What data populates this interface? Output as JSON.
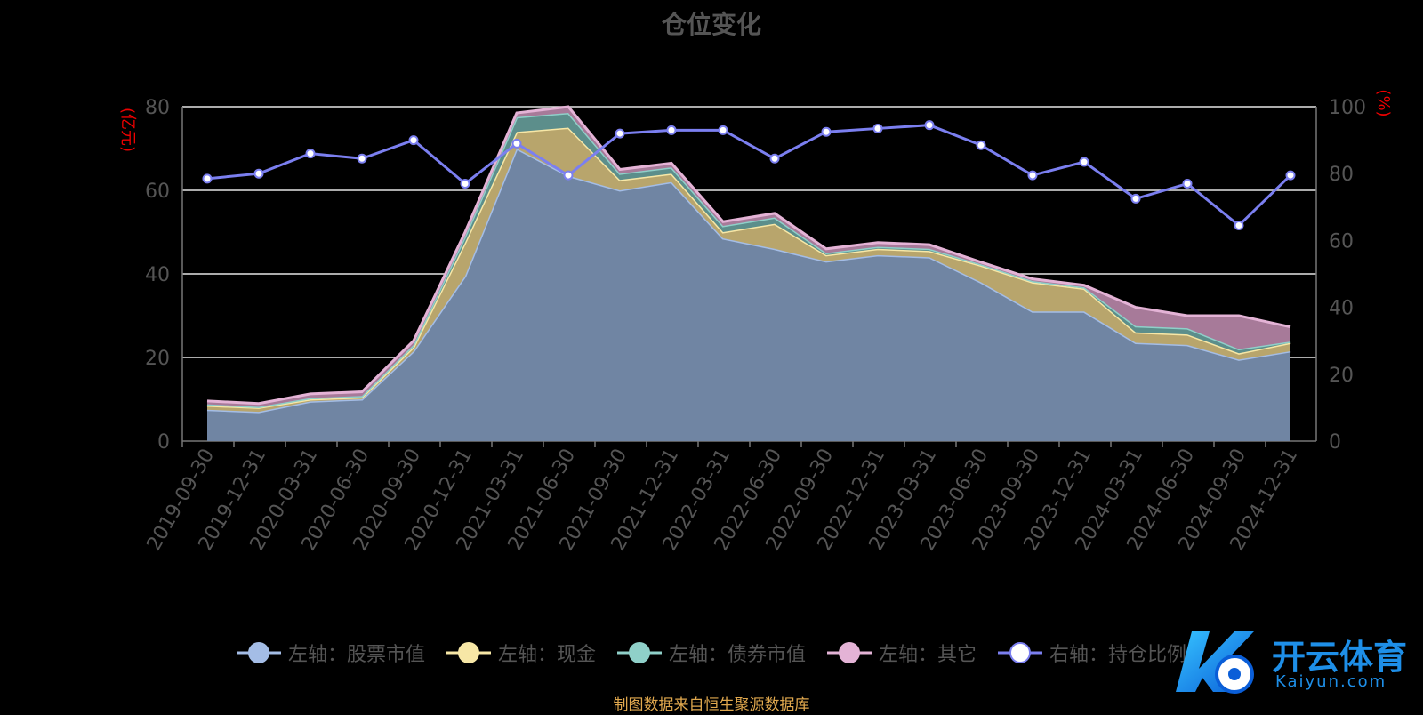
{
  "chart_data": {
    "type": "area",
    "title": "仓位变化",
    "categories": [
      "2019-09-30",
      "2019-12-31",
      "2020-03-31",
      "2020-06-30",
      "2020-09-30",
      "2020-12-31",
      "2021-03-31",
      "2021-06-30",
      "2021-09-30",
      "2021-12-31",
      "2022-03-31",
      "2022-06-30",
      "2022-09-30",
      "2022-12-31",
      "2023-03-31",
      "2023-06-30",
      "2023-09-30",
      "2023-12-31",
      "2024-03-31",
      "2024-06-30",
      "2024-09-30",
      "2024-12-31"
    ],
    "ylabel_left": "(亿元)",
    "ylabel_right": "(%)",
    "ylim_left": [
      0,
      80
    ],
    "ylim_right": [
      0,
      100
    ],
    "yticks_left": [
      0,
      20,
      40,
      60,
      80
    ],
    "yticks_right": [
      0,
      20,
      40,
      60,
      80,
      100
    ],
    "grid": true,
    "legend_position": "bottom",
    "stacked": true,
    "series": [
      {
        "name": "左轴：股票市值",
        "axis": "left",
        "color": "#a4bde6",
        "values": [
          7.5,
          7.0,
          9.5,
          10.0,
          21.5,
          39.5,
          70.0,
          63.5,
          60.0,
          62.0,
          48.5,
          46.0,
          43.0,
          44.5,
          44.0,
          38.0,
          31.0,
          31.0,
          23.5,
          23.0,
          19.5,
          21.5
        ]
      },
      {
        "name": "左轴：现金",
        "axis": "left",
        "color": "#f7e7a6",
        "values": [
          1.0,
          1.0,
          0.5,
          0.5,
          1.0,
          8.0,
          4.0,
          11.5,
          2.5,
          2.0,
          1.5,
          6.0,
          1.5,
          1.5,
          1.5,
          4.0,
          7.0,
          5.5,
          2.5,
          2.5,
          1.5,
          2.0
        ]
      },
      {
        "name": "左轴：债券市值",
        "axis": "left",
        "color": "#8fd0c9",
        "values": [
          0.3,
          0.2,
          0.3,
          0.3,
          0.5,
          1.5,
          3.5,
          3.5,
          1.5,
          1.5,
          1.5,
          1.5,
          0.5,
          0.5,
          0.5,
          0.3,
          0.3,
          0.3,
          1.5,
          1.5,
          1.0,
          0.3
        ]
      },
      {
        "name": "左轴：其它",
        "axis": "left",
        "color": "#e4b3d6",
        "values": [
          0.8,
          0.8,
          1.0,
          1.0,
          1.0,
          1.0,
          1.0,
          1.5,
          1.0,
          1.0,
          1.0,
          1.0,
          1.0,
          1.0,
          1.0,
          0.5,
          0.5,
          0.5,
          4.5,
          3.0,
          8.0,
          3.5
        ]
      },
      {
        "name": "右轴：持仓比例",
        "axis": "right",
        "color": "#7b7ff0",
        "values": [
          78.5,
          80.0,
          86.0,
          84.5,
          90.0,
          77.0,
          89.0,
          79.5,
          92.0,
          93.0,
          93.0,
          84.5,
          92.5,
          93.5,
          94.5,
          88.5,
          79.5,
          83.5,
          72.5,
          77.0,
          64.5,
          79.5
        ]
      }
    ]
  },
  "source_note": "制图数据来自恒生聚源数据库",
  "watermark": {
    "main": "开云体育",
    "sub": "Kaiyun.com"
  }
}
